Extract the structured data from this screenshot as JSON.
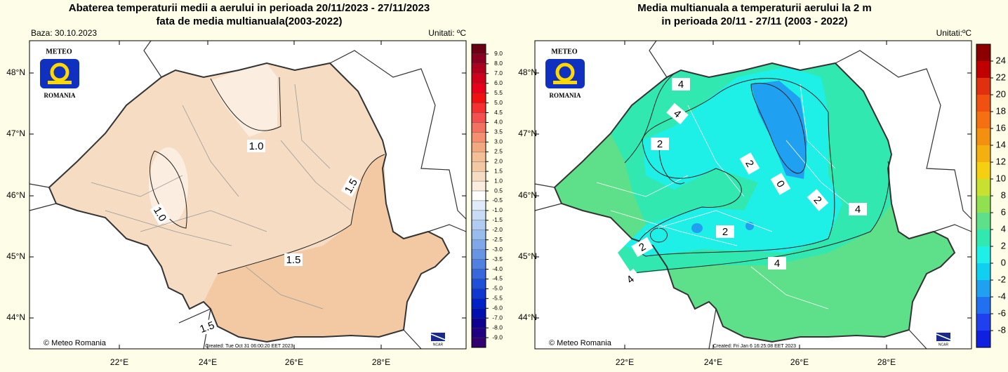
{
  "panels": [
    {
      "title": "Abaterea temperaturii medii a aerului in perioada 20/11/2023 - 27/11/2023",
      "subtitle": "fata de media multianuala(2003-2022)",
      "base": "Baza: 30.10.2023",
      "units": "Unitati: ºC",
      "logo": {
        "name": "METEO",
        "country": "ROMANIA"
      },
      "credit": "© Meteo Romania",
      "created": "Created: Tue Oct 31 06:00:20 EET 2023",
      "ncar": "NCAR",
      "lat_labels": [
        "48°N",
        "47°N",
        "46°N",
        "45°N",
        "44°N"
      ],
      "lon_labels": [
        "22°E",
        "24°E",
        "26°E",
        "28°E"
      ],
      "contour_labels": [
        "1.0",
        "1.0",
        "1.5",
        "1.5",
        "1.5"
      ],
      "colorbar": {
        "labels": [
          "9.0",
          "8.0",
          "7.0",
          "6.0",
          "5.5",
          "5.0",
          "4.5",
          "4.0",
          "3.5",
          "3.0",
          "2.5",
          "2.0",
          "1.5",
          "1.0",
          "0.5",
          "-0.5",
          "-1.0",
          "-1.5",
          "-2.0",
          "-2.5",
          "-3.0",
          "-3.5",
          "-4.0",
          "-4.5",
          "-5.0",
          "-5.5",
          "-6.0",
          "-7.0",
          "-8.0",
          "-9.0"
        ],
        "colors": [
          "#6b0014",
          "#8b0020",
          "#b00020",
          "#d0001a",
          "#e8001a",
          "#f01010",
          "#f43030",
          "#f45050",
          "#f47060",
          "#f49070",
          "#f4a880",
          "#f3bf95",
          "#f3c9a4",
          "#f6dcc3",
          "#fbeee0",
          "#ffffff",
          "#e0ecfa",
          "#c8dcf5",
          "#b0ccf0",
          "#98bcec",
          "#80a8e8",
          "#6894e4",
          "#5080e0",
          "#3868dc",
          "#2050d8",
          "#1038d0",
          "#0020c8",
          "#0010b0",
          "#100090",
          "#200080",
          "#300070"
        ]
      }
    },
    {
      "title": "Media multianuala a temperaturii aerului la 2 m",
      "subtitle": "in perioada 20/11 - 27/11 (2003 - 2022)",
      "units": "Unitati:ºC",
      "logo": {
        "name": "METEO",
        "country": "ROMANIA"
      },
      "credit": "© Meteo Romania",
      "created": "Created: Fri Jan  6 16:25:08 EET 2023",
      "ncar": "NCAR",
      "lat_labels": [
        "48°N",
        "47°N",
        "46°N",
        "45°N",
        "44°N"
      ],
      "lon_labels": [
        "22°E",
        "24°E",
        "26°E",
        "28°E"
      ],
      "contour_labels": [
        "4",
        "4",
        "2",
        "2",
        "0",
        "2",
        "4",
        "2",
        "2",
        "4",
        "4"
      ],
      "colorbar": {
        "labels": [
          "24",
          "22",
          "20",
          "18",
          "16",
          "14",
          "12",
          "10",
          "8",
          "6",
          "4",
          "2",
          "0",
          "-2",
          "-4",
          "-6",
          "-8"
        ],
        "colors": [
          "#8b0000",
          "#c00000",
          "#e03010",
          "#f05010",
          "#f47010",
          "#f49010",
          "#f4b010",
          "#f4d010",
          "#c8e030",
          "#90e050",
          "#5ee08a",
          "#30e8b0",
          "#1ef0e8",
          "#10d0f0",
          "#20a0f0",
          "#2070f0",
          "#2040f0",
          "#1020e0"
        ]
      }
    }
  ]
}
